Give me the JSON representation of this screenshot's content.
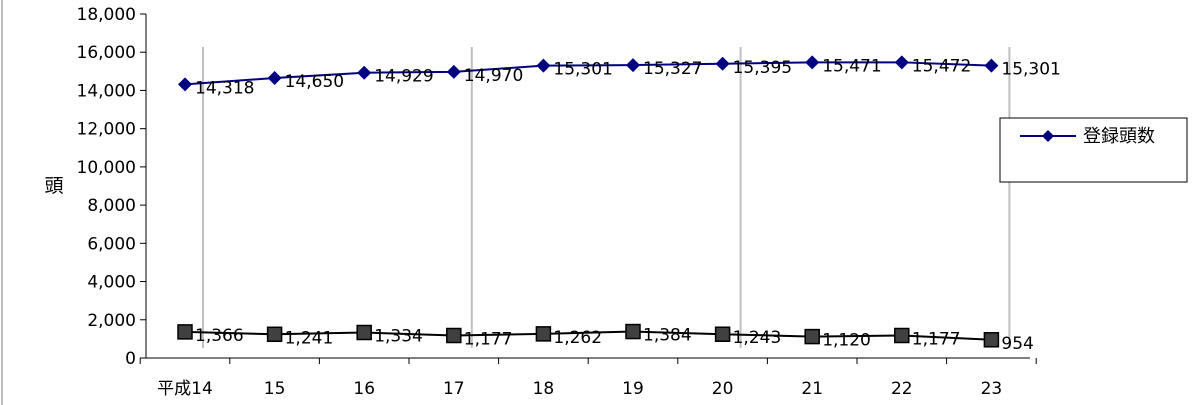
{
  "chart_data": {
    "type": "line",
    "categories": [
      "平成14",
      "15",
      "16",
      "17",
      "18",
      "19",
      "20",
      "21",
      "22",
      "23"
    ],
    "series": [
      {
        "name": "登録頭数",
        "values": [
          14318,
          14650,
          14929,
          14970,
          15301,
          15327,
          15395,
          15471,
          15472,
          15301
        ],
        "labels": [
          "14,318",
          "14,650",
          "14,929",
          "14,970",
          "15,301",
          "15,327",
          "15,395",
          "15,471",
          "15,472",
          "15,301"
        ],
        "color": "#000080",
        "marker": "diamond",
        "show_in_legend": true
      },
      {
        "name": "",
        "values": [
          1366,
          1241,
          1334,
          1177,
          1262,
          1384,
          1243,
          1120,
          1177,
          954
        ],
        "labels": [
          "1,366",
          "1,241",
          "1,334",
          "1,177",
          "1,262",
          "1,384",
          "1,243",
          "1,120",
          "1,177",
          "954"
        ],
        "color": "#000000",
        "marker": "square",
        "show_in_legend": false
      }
    ],
    "ylabel": "頭",
    "ylim": [
      0,
      18000
    ],
    "yticks": [
      "0",
      "2,000",
      "4,000",
      "6,000",
      "8,000",
      "10,000",
      "12,000",
      "14,000",
      "16,000",
      "18,000"
    ],
    "ytick_values": [
      0,
      2000,
      4000,
      6000,
      8000,
      10000,
      12000,
      14000,
      16000,
      18000
    ],
    "highlight_lines_at": [
      "平成14",
      "17",
      "20",
      "23"
    ],
    "highlight_line_color": "#c0c0c0",
    "grid": false,
    "legend": {
      "position": "right",
      "entries": [
        "登録頭数"
      ]
    }
  }
}
